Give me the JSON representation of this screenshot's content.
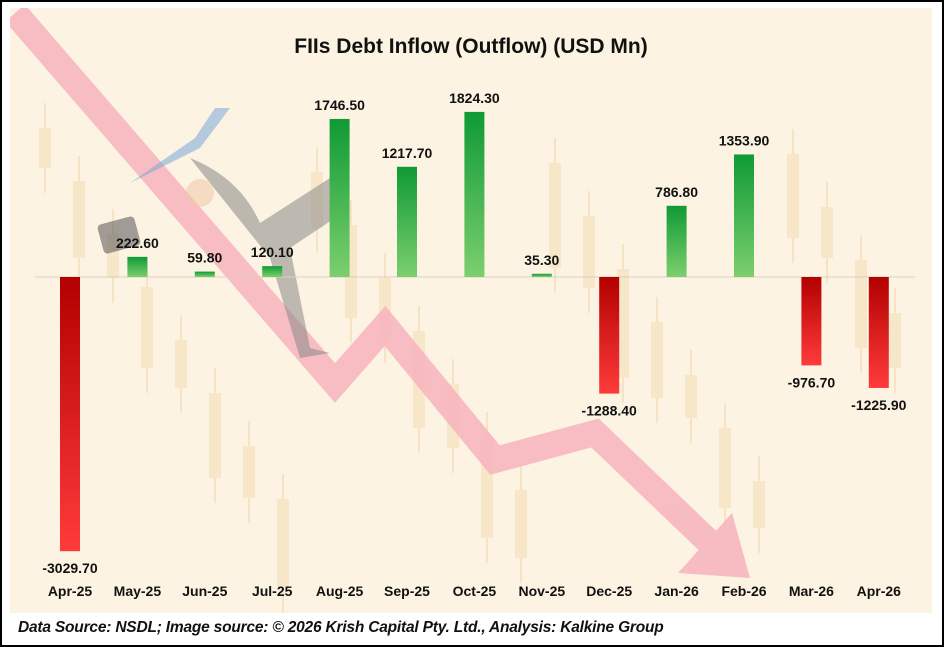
{
  "chart_data": {
    "type": "bar",
    "title": "FIIs Debt Inflow (Outflow) (USD Mn)",
    "xlabel": "",
    "ylabel": "",
    "categories": [
      "Apr-25",
      "May-25",
      "Jun-25",
      "Jul-25",
      "Aug-25",
      "Sep-25",
      "Oct-25",
      "Nov-25",
      "Dec-25",
      "Jan-26",
      "Feb-26",
      "Mar-26",
      "Apr-26"
    ],
    "values": [
      -3029.7,
      222.6,
      59.8,
      120.1,
      1746.5,
      1217.7,
      1824.3,
      35.3,
      -1288.4,
      786.8,
      1353.9,
      -976.7,
      -1225.9
    ],
    "data_labels": [
      "-3029.70",
      "222.60",
      "59.80",
      "120.10",
      "1746.50",
      "1217.70",
      "1824.30",
      "35.30",
      "-1288.40",
      "786.80",
      "1353.90",
      "-976.70",
      "-1225.90"
    ],
    "ylim": [
      -3300,
      2300
    ],
    "grid": false,
    "legend": "none",
    "colors": {
      "positive_top": "#0f9a35",
      "positive_bottom": "#7ccf6e",
      "negative_top": "#b30000",
      "negative_bottom": "#ff3b3b",
      "background": "#fdf3e3",
      "arrow": "#f7b3bd"
    }
  },
  "footer": {
    "source": "Data Source: NSDL; Image source: © 2026 Krish Capital Pty. Ltd., Analysis: Kalkine Group"
  }
}
